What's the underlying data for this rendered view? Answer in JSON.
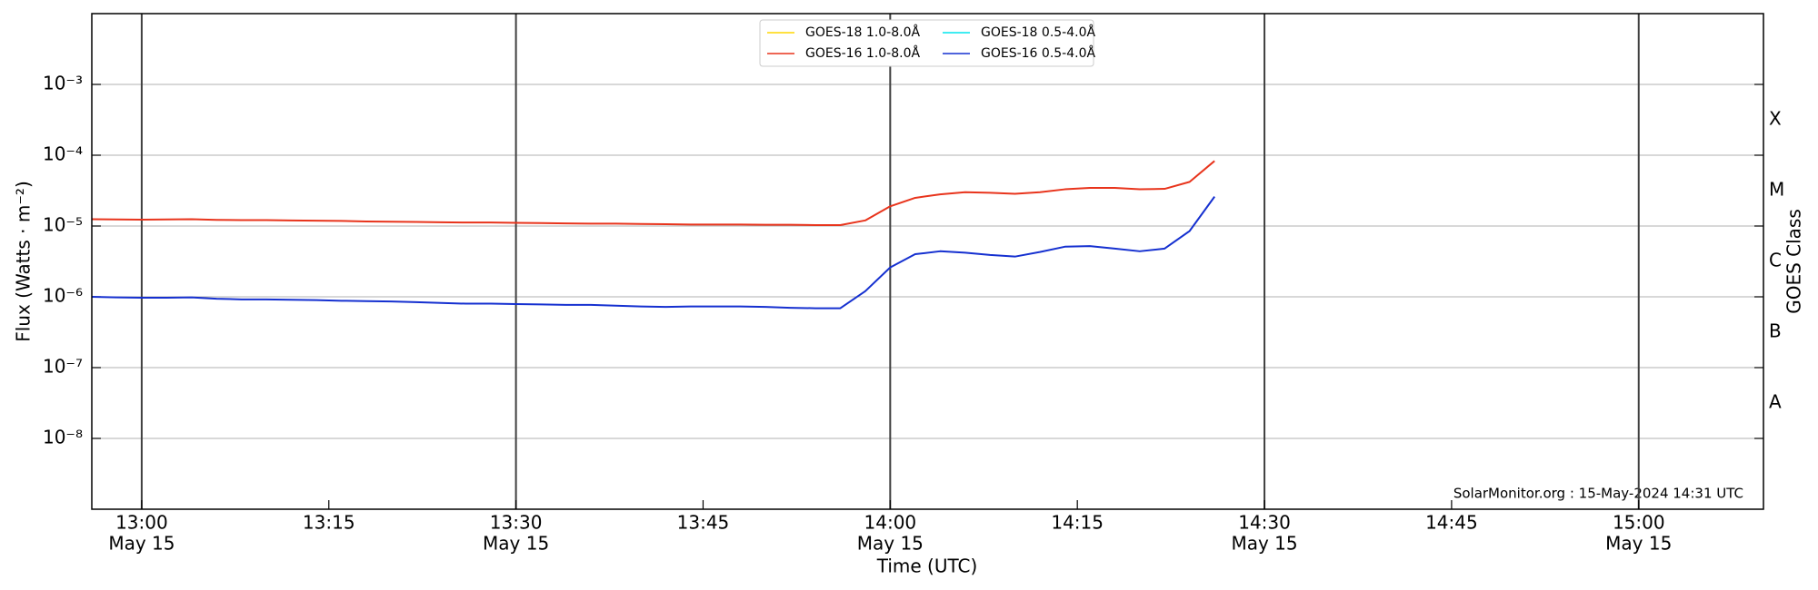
{
  "chart_data": {
    "type": "line",
    "ylabel": "Flux (Watts · m⁻²)",
    "xlabel": "Time (UTC)",
    "y2label": "GOES Class",
    "annotation": "SolarMonitor.org : 15-May-2024 14:31 UTC",
    "log_y": true,
    "grid": true,
    "legend": "upper center",
    "ylim": [
      1e-09,
      0.01
    ],
    "yticks": [
      {
        "value": 1e-08,
        "label": "10⁻⁸"
      },
      {
        "value": 1e-07,
        "label": "10⁻⁷"
      },
      {
        "value": 1e-06,
        "label": "10⁻⁶"
      },
      {
        "value": 1e-05,
        "label": "10⁻⁵"
      },
      {
        "value": 0.0001,
        "label": "10⁻⁴"
      },
      {
        "value": 0.001,
        "label": "10⁻³"
      }
    ],
    "y2lim": [
      1e-09,
      0.01
    ],
    "y2ticks": [
      {
        "value": 3.16e-08,
        "label": "A"
      },
      {
        "value": 3.16e-07,
        "label": "B"
      },
      {
        "value": 3.16e-06,
        "label": "C"
      },
      {
        "value": 3.16e-05,
        "label": "M"
      },
      {
        "value": 0.000316,
        "label": "X"
      }
    ],
    "xlim": [
      "May 15 12:56",
      "May 15 15:10"
    ],
    "xticks": [
      {
        "value": "May 15 13:00",
        "label": [
          "13:00",
          "May 15"
        ]
      },
      {
        "value": "May 15 13:15",
        "label": [
          "13:15"
        ]
      },
      {
        "value": "May 15 13:30",
        "label": [
          "13:30",
          "May 15"
        ]
      },
      {
        "value": "May 15 13:45",
        "label": [
          "13:45"
        ]
      },
      {
        "value": "May 15 14:00",
        "label": [
          "14:00",
          "May 15"
        ]
      },
      {
        "value": "May 15 14:15",
        "label": [
          "14:15"
        ]
      },
      {
        "value": "May 15 14:30",
        "label": [
          "14:30",
          "May 15"
        ]
      },
      {
        "value": "May 15 14:45",
        "label": [
          "14:45"
        ]
      },
      {
        "value": "May 15 15:00",
        "label": [
          "15:00",
          "May 15"
        ]
      }
    ],
    "x": [
      "May 15 12:56",
      "May 15 12:58",
      "May 15 13:00",
      "May 15 13:02",
      "May 15 13:04",
      "May 15 13:06",
      "May 15 13:08",
      "May 15 13:10",
      "May 15 13:12",
      "May 15 13:14",
      "May 15 13:16",
      "May 15 13:18",
      "May 15 13:20",
      "May 15 13:22",
      "May 15 13:24",
      "May 15 13:26",
      "May 15 13:28",
      "May 15 13:30",
      "May 15 13:32",
      "May 15 13:34",
      "May 15 13:36",
      "May 15 13:38",
      "May 15 13:40",
      "May 15 13:42",
      "May 15 13:44",
      "May 15 13:46",
      "May 15 13:48",
      "May 15 13:50",
      "May 15 13:52",
      "May 15 13:54",
      "May 15 13:56",
      "May 15 13:58",
      "May 15 14:00",
      "May 15 14:02",
      "May 15 14:04",
      "May 15 14:06",
      "May 15 14:08",
      "May 15 14:10",
      "May 15 14:12",
      "May 15 14:14",
      "May 15 14:16",
      "May 15 14:18",
      "May 15 14:20",
      "May 15 14:22",
      "May 15 14:24",
      "May 15 14:26"
    ],
    "series": [
      {
        "name": "GOES-18 1.0-8.0Å",
        "color": "#ffd700",
        "values": [
          null,
          null,
          null,
          null,
          null,
          null,
          null,
          null,
          null,
          null,
          null,
          null,
          null,
          null,
          null,
          null,
          null,
          null,
          null,
          null,
          null,
          null,
          null,
          null,
          null,
          null,
          null,
          null,
          null,
          null,
          null,
          null,
          null,
          null,
          null,
          null,
          null,
          null,
          null,
          null,
          null,
          null,
          null,
          null,
          null,
          null
        ]
      },
      {
        "name": "GOES-16 1.0-8.0Å",
        "color": "#e8341c",
        "values": [
          1.25e-05,
          1.24e-05,
          1.23e-05,
          1.24e-05,
          1.25e-05,
          1.22e-05,
          1.21e-05,
          1.21e-05,
          1.2e-05,
          1.19e-05,
          1.18e-05,
          1.16e-05,
          1.15e-05,
          1.14e-05,
          1.13e-05,
          1.12e-05,
          1.12e-05,
          1.11e-05,
          1.1e-05,
          1.09e-05,
          1.08e-05,
          1.08e-05,
          1.07e-05,
          1.06e-05,
          1.05e-05,
          1.05e-05,
          1.05e-05,
          1.04e-05,
          1.04e-05,
          1.03e-05,
          1.03e-05,
          1.2e-05,
          1.9e-05,
          2.5e-05,
          2.8e-05,
          3e-05,
          2.95e-05,
          2.85e-05,
          3e-05,
          3.3e-05,
          3.45e-05,
          3.45e-05,
          3.3e-05,
          3.35e-05,
          4.2e-05,
          8.3e-05
        ]
      },
      {
        "name": "GOES-18 0.5-4.0Å",
        "color": "#00e5ee",
        "values": [
          null,
          null,
          null,
          null,
          null,
          null,
          null,
          null,
          null,
          null,
          null,
          null,
          null,
          null,
          null,
          null,
          null,
          null,
          null,
          null,
          null,
          null,
          null,
          null,
          null,
          null,
          null,
          null,
          null,
          null,
          null,
          null,
          null,
          null,
          null,
          null,
          null,
          null,
          null,
          null,
          null,
          null,
          null,
          null,
          null,
          null
        ]
      },
      {
        "name": "GOES-16 0.5-4.0Å",
        "color": "#1530d0",
        "values": [
          1e-06,
          9.8e-07,
          9.7e-07,
          9.7e-07,
          9.8e-07,
          9.4e-07,
          9.2e-07,
          9.2e-07,
          9.1e-07,
          9e-07,
          8.8e-07,
          8.7e-07,
          8.6e-07,
          8.4e-07,
          8.2e-07,
          8e-07,
          8e-07,
          7.9e-07,
          7.8e-07,
          7.7e-07,
          7.7e-07,
          7.5e-07,
          7.3e-07,
          7.2e-07,
          7.3e-07,
          7.3e-07,
          7.3e-07,
          7.2e-07,
          7e-07,
          6.9e-07,
          6.9e-07,
          1.2e-06,
          2.6e-06,
          4e-06,
          4.4e-06,
          4.2e-06,
          3.9e-06,
          3.7e-06,
          4.3e-06,
          5.1e-06,
          5.2e-06,
          4.8e-06,
          4.4e-06,
          4.8e-06,
          8.5e-06,
          2.6e-05
        ]
      }
    ]
  }
}
